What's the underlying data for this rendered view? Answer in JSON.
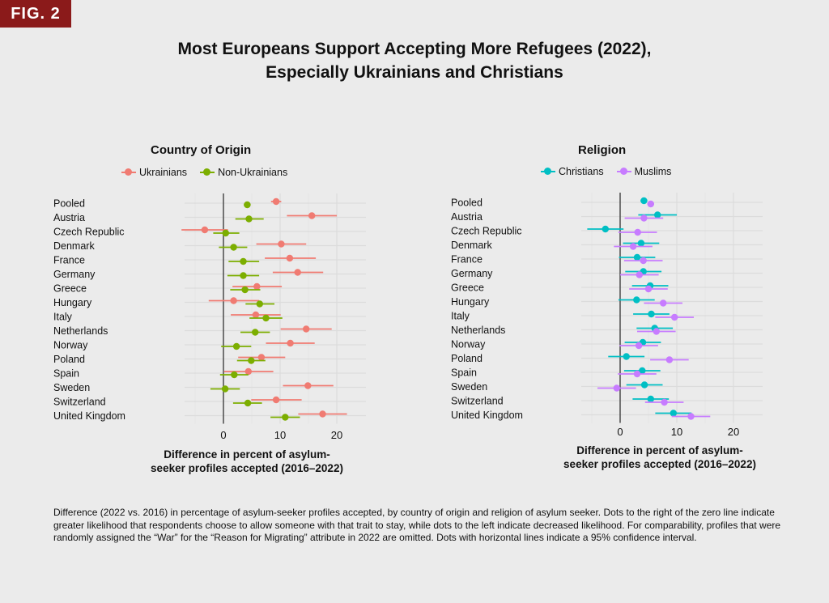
{
  "badge": "FIG. 2",
  "title_line1": "Most Europeans Support Accepting More Refugees (2022),",
  "title_line2": "Especially Ukrainians and Christians",
  "caption": "Difference (2022 vs. 2016) in percentage of asylum-seeker profiles accepted, by country of origin and religion of asylum seeker. Dots to the right of the zero line indicate greater likelihood that respondents choose to allow someone with that trait to stay, while dots to the left indicate decreased likelihood. For comparability, profiles that were randomly assigned the “War” for the “Reason for Migrating” attribute in 2022 are omitted. Dots with horizontal lines indicate a 95% confidence interval.",
  "chart_data": [
    {
      "type": "scatter",
      "title": "Country of Origin",
      "xlabel": "Difference in percent of asylum-seeker profiles accepted (2016–2022)",
      "xlabel_line1": "Difference in percent of asylum-",
      "xlabel_line2": "seeker profiles accepted (2016–2022)",
      "xticks": [
        0,
        10,
        20
      ],
      "xlim": [
        -8,
        25
      ],
      "legend_position": "top",
      "categories": [
        "Pooled",
        "Austria",
        "Czech Republic",
        "Denmark",
        "France",
        "Germany",
        "Greece",
        "Hungary",
        "Italy",
        "Netherlands",
        "Norway",
        "Poland",
        "Spain",
        "Sweden",
        "Switzerland",
        "United Kingdom"
      ],
      "series": [
        {
          "name": "Ukrainians",
          "color": "#f07b72",
          "values": [
            9.3,
            15.6,
            -3.3,
            10.2,
            11.7,
            13.1,
            5.9,
            1.8,
            5.7,
            14.6,
            11.8,
            6.7,
            4.4,
            14.9,
            9.3,
            17.5
          ],
          "ci": [
            [
              8.4,
              10.2
            ],
            [
              11.2,
              20.0
            ],
            [
              -7.4,
              0.8
            ],
            [
              5.8,
              14.6
            ],
            [
              7.3,
              16.3
            ],
            [
              8.7,
              17.6
            ],
            [
              1.6,
              10.3
            ],
            [
              -2.6,
              6.3
            ],
            [
              1.3,
              10.1
            ],
            [
              10.1,
              19.1
            ],
            [
              7.5,
              16.1
            ],
            [
              2.6,
              10.9
            ],
            [
              0.1,
              8.8
            ],
            [
              10.5,
              19.4
            ],
            [
              4.9,
              13.8
            ],
            [
              13.2,
              21.8
            ]
          ]
        },
        {
          "name": "Non-Ukrainians",
          "color": "#7cae00",
          "values": [
            4.2,
            4.5,
            0.4,
            1.8,
            3.5,
            3.5,
            3.8,
            6.4,
            7.5,
            5.6,
            2.3,
            4.9,
            1.9,
            0.3,
            4.3,
            10.9
          ],
          "ci": [
            [
              3.6,
              4.8
            ],
            [
              2.1,
              7.1
            ],
            [
              -1.8,
              2.8
            ],
            [
              -0.8,
              4.2
            ],
            [
              0.9,
              6.3
            ],
            [
              0.7,
              6.3
            ],
            [
              1.2,
              6.5
            ],
            [
              3.9,
              9.0
            ],
            [
              4.6,
              10.4
            ],
            [
              3.0,
              8.2
            ],
            [
              -0.4,
              4.9
            ],
            [
              2.4,
              7.4
            ],
            [
              -0.6,
              4.4
            ],
            [
              -2.3,
              2.9
            ],
            [
              1.7,
              6.8
            ],
            [
              8.3,
              13.5
            ]
          ]
        }
      ]
    },
    {
      "type": "scatter",
      "title": "Religion",
      "xlabel": "Difference in percent of asylum-seeker profiles accepted (2016–2022)",
      "xlabel_line1": "Difference in percent of asylum-",
      "xlabel_line2": "seeker profiles accepted (2016–2022)",
      "xticks": [
        0,
        10,
        20
      ],
      "xlim": [
        -8,
        25
      ],
      "legend_position": "top",
      "categories": [
        "Pooled",
        "Austria",
        "Czech Republic",
        "Denmark",
        "France",
        "Germany",
        "Greece",
        "Hungary",
        "Italy",
        "Netherlands",
        "Norway",
        "Poland",
        "Spain",
        "Sweden",
        "Switzerland",
        "United Kingdom"
      ],
      "series": [
        {
          "name": "Christians",
          "color": "#00bfc4",
          "values": [
            4.2,
            6.6,
            -2.6,
            3.7,
            3.0,
            4.1,
            5.3,
            2.9,
            5.5,
            6.1,
            4.0,
            1.1,
            3.9,
            4.3,
            5.4,
            9.4
          ],
          "ci": [
            [
              3.6,
              4.8
            ],
            [
              3.2,
              10.0
            ],
            [
              -5.8,
              0.6
            ],
            [
              0.5,
              6.9
            ],
            [
              -0.2,
              6.2
            ],
            [
              0.9,
              7.3
            ],
            [
              2.1,
              8.5
            ],
            [
              -0.3,
              6.1
            ],
            [
              2.3,
              8.7
            ],
            [
              2.9,
              9.3
            ],
            [
              0.8,
              7.2
            ],
            [
              -2.1,
              4.3
            ],
            [
              0.7,
              7.1
            ],
            [
              1.1,
              7.5
            ],
            [
              2.2,
              8.6
            ],
            [
              6.2,
              12.6
            ]
          ]
        },
        {
          "name": "Muslims",
          "color": "#c77cff",
          "values": [
            5.4,
            4.2,
            3.1,
            2.3,
            4.1,
            3.4,
            5.0,
            7.6,
            9.6,
            6.4,
            3.3,
            8.7,
            3.0,
            -0.6,
            7.8,
            12.5
          ],
          "ci": [
            [
              4.8,
              6.0
            ],
            [
              0.8,
              7.6
            ],
            [
              -0.3,
              6.5
            ],
            [
              -1.1,
              5.7
            ],
            [
              0.7,
              7.5
            ],
            [
              0.0,
              6.8
            ],
            [
              1.6,
              8.4
            ],
            [
              4.2,
              11.0
            ],
            [
              6.2,
              13.0
            ],
            [
              3.0,
              9.8
            ],
            [
              -0.1,
              6.7
            ],
            [
              5.3,
              12.1
            ],
            [
              -0.4,
              6.4
            ],
            [
              -4.0,
              2.8
            ],
            [
              4.4,
              11.2
            ],
            [
              9.1,
              15.9
            ]
          ]
        }
      ]
    }
  ]
}
